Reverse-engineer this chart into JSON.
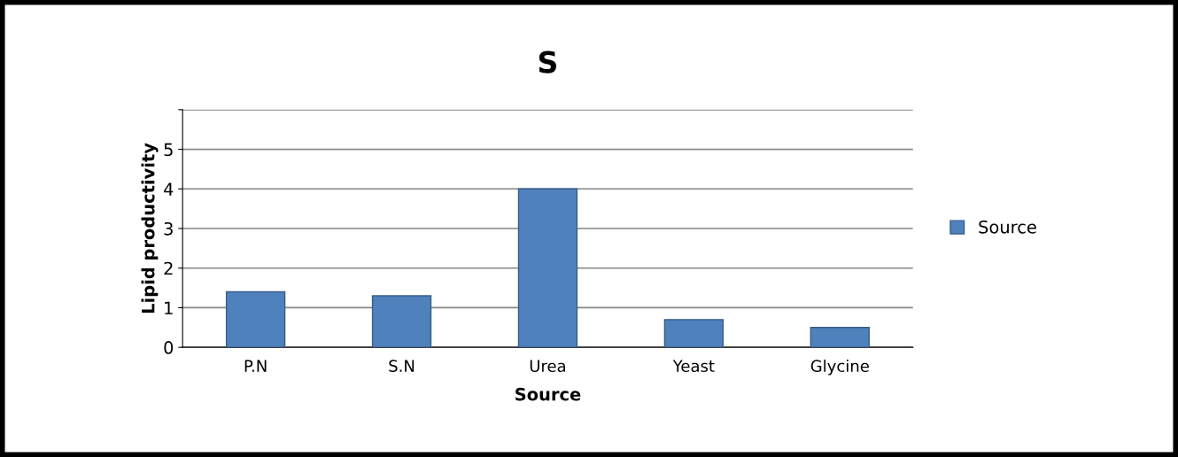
{
  "chart_data": {
    "type": "bar",
    "title": "S",
    "xlabel": "Source",
    "ylabel": "Lipid productivity",
    "categories": [
      "P.N",
      "S.N",
      "Urea",
      "Yeast",
      "Glycine"
    ],
    "series": [
      {
        "name": "Source",
        "color": "#4f81bd",
        "values": [
          1.4,
          1.3,
          4.0,
          0.7,
          0.5
        ]
      }
    ],
    "ylim": [
      0,
      6
    ],
    "yticks": [
      0,
      1,
      2,
      3,
      4,
      5,
      {
        "value": 6,
        "label": null
      }
    ],
    "grid": "y",
    "legend": "right"
  }
}
